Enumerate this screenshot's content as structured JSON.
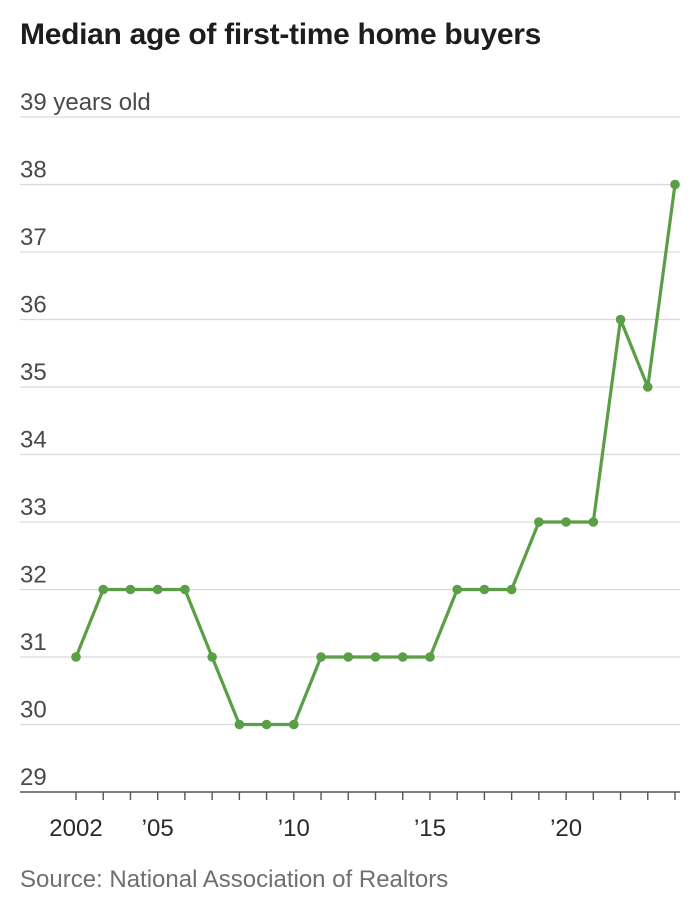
{
  "chart_data": {
    "type": "line",
    "title": "Median age of first-time home buyers",
    "unit_label": "years old",
    "source": "Source: National Association of Realtors",
    "ylim": [
      29,
      39
    ],
    "y_ticks": [
      29,
      30,
      31,
      32,
      33,
      34,
      35,
      36,
      37,
      38,
      39
    ],
    "x_range": [
      2002,
      2024
    ],
    "x_tick_labels": [
      {
        "x": 2002,
        "label": "2002"
      },
      {
        "x": 2005,
        "label": "’05"
      },
      {
        "x": 2010,
        "label": "’10"
      },
      {
        "x": 2015,
        "label": "’15"
      },
      {
        "x": 2020,
        "label": "’20"
      }
    ],
    "x_minor_ticks": [
      2002,
      2003,
      2004,
      2005,
      2006,
      2007,
      2008,
      2009,
      2010,
      2011,
      2012,
      2013,
      2014,
      2015,
      2016,
      2017,
      2018,
      2019,
      2020,
      2021,
      2022,
      2023,
      2024
    ],
    "grid": true,
    "line_color": "#5a9e45",
    "grid_color": "#d9d9d9",
    "series": [
      {
        "points": [
          [
            2002,
            31
          ],
          [
            2003,
            32
          ],
          [
            2004,
            32
          ],
          [
            2005,
            32
          ],
          [
            2006,
            32
          ],
          [
            2007,
            31
          ],
          [
            2008,
            30
          ],
          [
            2009,
            30
          ],
          [
            2010,
            30
          ],
          [
            2011,
            31
          ],
          [
            2012,
            31
          ],
          [
            2013,
            31
          ],
          [
            2014,
            31
          ],
          [
            2015,
            31
          ],
          [
            2016,
            32
          ],
          [
            2017,
            32
          ],
          [
            2018,
            32
          ],
          [
            2019,
            33
          ],
          [
            2020,
            33
          ],
          [
            2021,
            33
          ],
          [
            2022,
            36
          ],
          [
            2023,
            35
          ],
          [
            2024,
            38
          ]
        ]
      }
    ]
  }
}
